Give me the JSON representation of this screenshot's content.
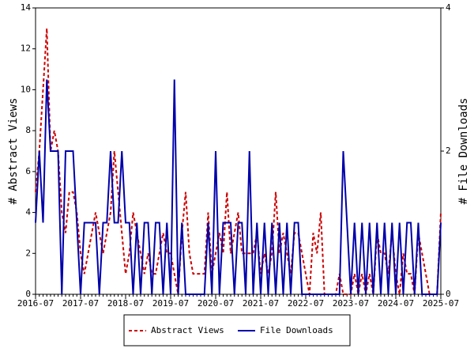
{
  "chart_data": {
    "type": "line",
    "categories": [
      "2016-07",
      null,
      null,
      null,
      null,
      null,
      null,
      null,
      null,
      null,
      null,
      null,
      "2017-07",
      null,
      null,
      null,
      null,
      null,
      null,
      null,
      null,
      null,
      null,
      null,
      "2018-07",
      null,
      null,
      null,
      null,
      null,
      null,
      null,
      null,
      null,
      null,
      null,
      "2019-07",
      null,
      null,
      null,
      null,
      null,
      null,
      null,
      null,
      null,
      null,
      null,
      "2020-07",
      null,
      null,
      null,
      null,
      null,
      null,
      null,
      null,
      null,
      null,
      null,
      "2021-07",
      null,
      null,
      null,
      null,
      null,
      null,
      null,
      null,
      null,
      null,
      null,
      "2022-07",
      null,
      null,
      null,
      null,
      null,
      null,
      null,
      null,
      null,
      null,
      null,
      "2023-07",
      null,
      null,
      null,
      null,
      null,
      null,
      null,
      null,
      null,
      null,
      null,
      "2024-07",
      null,
      null,
      null,
      null,
      null,
      null,
      null,
      null,
      null,
      null,
      null,
      "2025-07"
    ],
    "ylabel": "# Abstract Views",
    "y2label": "# File Downloads",
    "ylim": [
      0,
      14
    ],
    "yticks": [
      0,
      2,
      4,
      6,
      8,
      10,
      12,
      14
    ],
    "y2lim": [
      0,
      4
    ],
    "y2ticks": [
      0,
      2,
      4
    ],
    "series": [
      {
        "name": "Abstract Views",
        "color": "#cc0000",
        "line_style": "dashed",
        "axis": "y",
        "values": [
          5,
          7,
          10,
          13,
          7,
          8,
          7,
          4,
          3,
          5,
          5,
          4,
          2,
          1,
          2,
          3,
          4,
          3,
          2,
          3,
          4,
          7,
          5,
          3,
          1,
          2,
          4,
          3,
          2,
          1,
          2,
          1,
          1,
          2,
          3,
          2,
          2,
          1,
          0,
          3,
          5,
          2,
          1,
          1,
          1,
          1,
          4,
          1,
          2,
          3,
          2,
          5,
          2,
          3,
          4,
          2,
          2,
          2,
          2,
          3,
          1,
          2,
          1,
          2,
          5,
          2,
          3,
          2,
          1,
          3,
          3,
          2,
          1,
          0,
          3,
          2,
          4,
          0,
          0,
          0,
          0,
          1,
          0,
          0,
          0,
          1,
          0,
          1,
          0,
          1,
          0,
          3,
          2,
          2,
          1,
          3,
          1,
          0,
          2,
          1,
          1,
          0,
          3,
          2,
          1,
          0,
          0,
          0,
          4
        ]
      },
      {
        "name": "File Downloads",
        "color": "#0000aa",
        "line_style": "solid",
        "axis": "y2",
        "values": [
          1,
          2,
          1,
          3,
          2,
          2,
          2,
          0,
          2,
          2,
          2,
          1,
          0,
          1,
          1,
          1,
          1,
          0,
          1,
          1,
          2,
          1,
          1,
          2,
          1,
          1,
          0,
          1,
          0,
          1,
          1,
          0,
          1,
          1,
          0,
          1,
          0,
          3,
          0,
          1,
          0,
          0,
          0,
          0,
          0,
          0,
          1,
          0,
          2,
          0,
          1,
          1,
          1,
          0,
          1,
          1,
          0,
          2,
          0,
          1,
          0,
          1,
          0,
          1,
          0,
          1,
          0,
          1,
          0,
          1,
          1,
          0,
          0,
          0,
          0,
          0,
          0,
          0,
          0,
          0,
          0,
          0,
          2,
          1,
          0,
          1,
          0,
          1,
          0,
          1,
          0,
          1,
          0,
          1,
          0,
          1,
          0,
          1,
          0,
          1,
          1,
          0,
          1,
          0,
          0,
          0,
          0,
          0,
          1
        ]
      }
    ]
  }
}
